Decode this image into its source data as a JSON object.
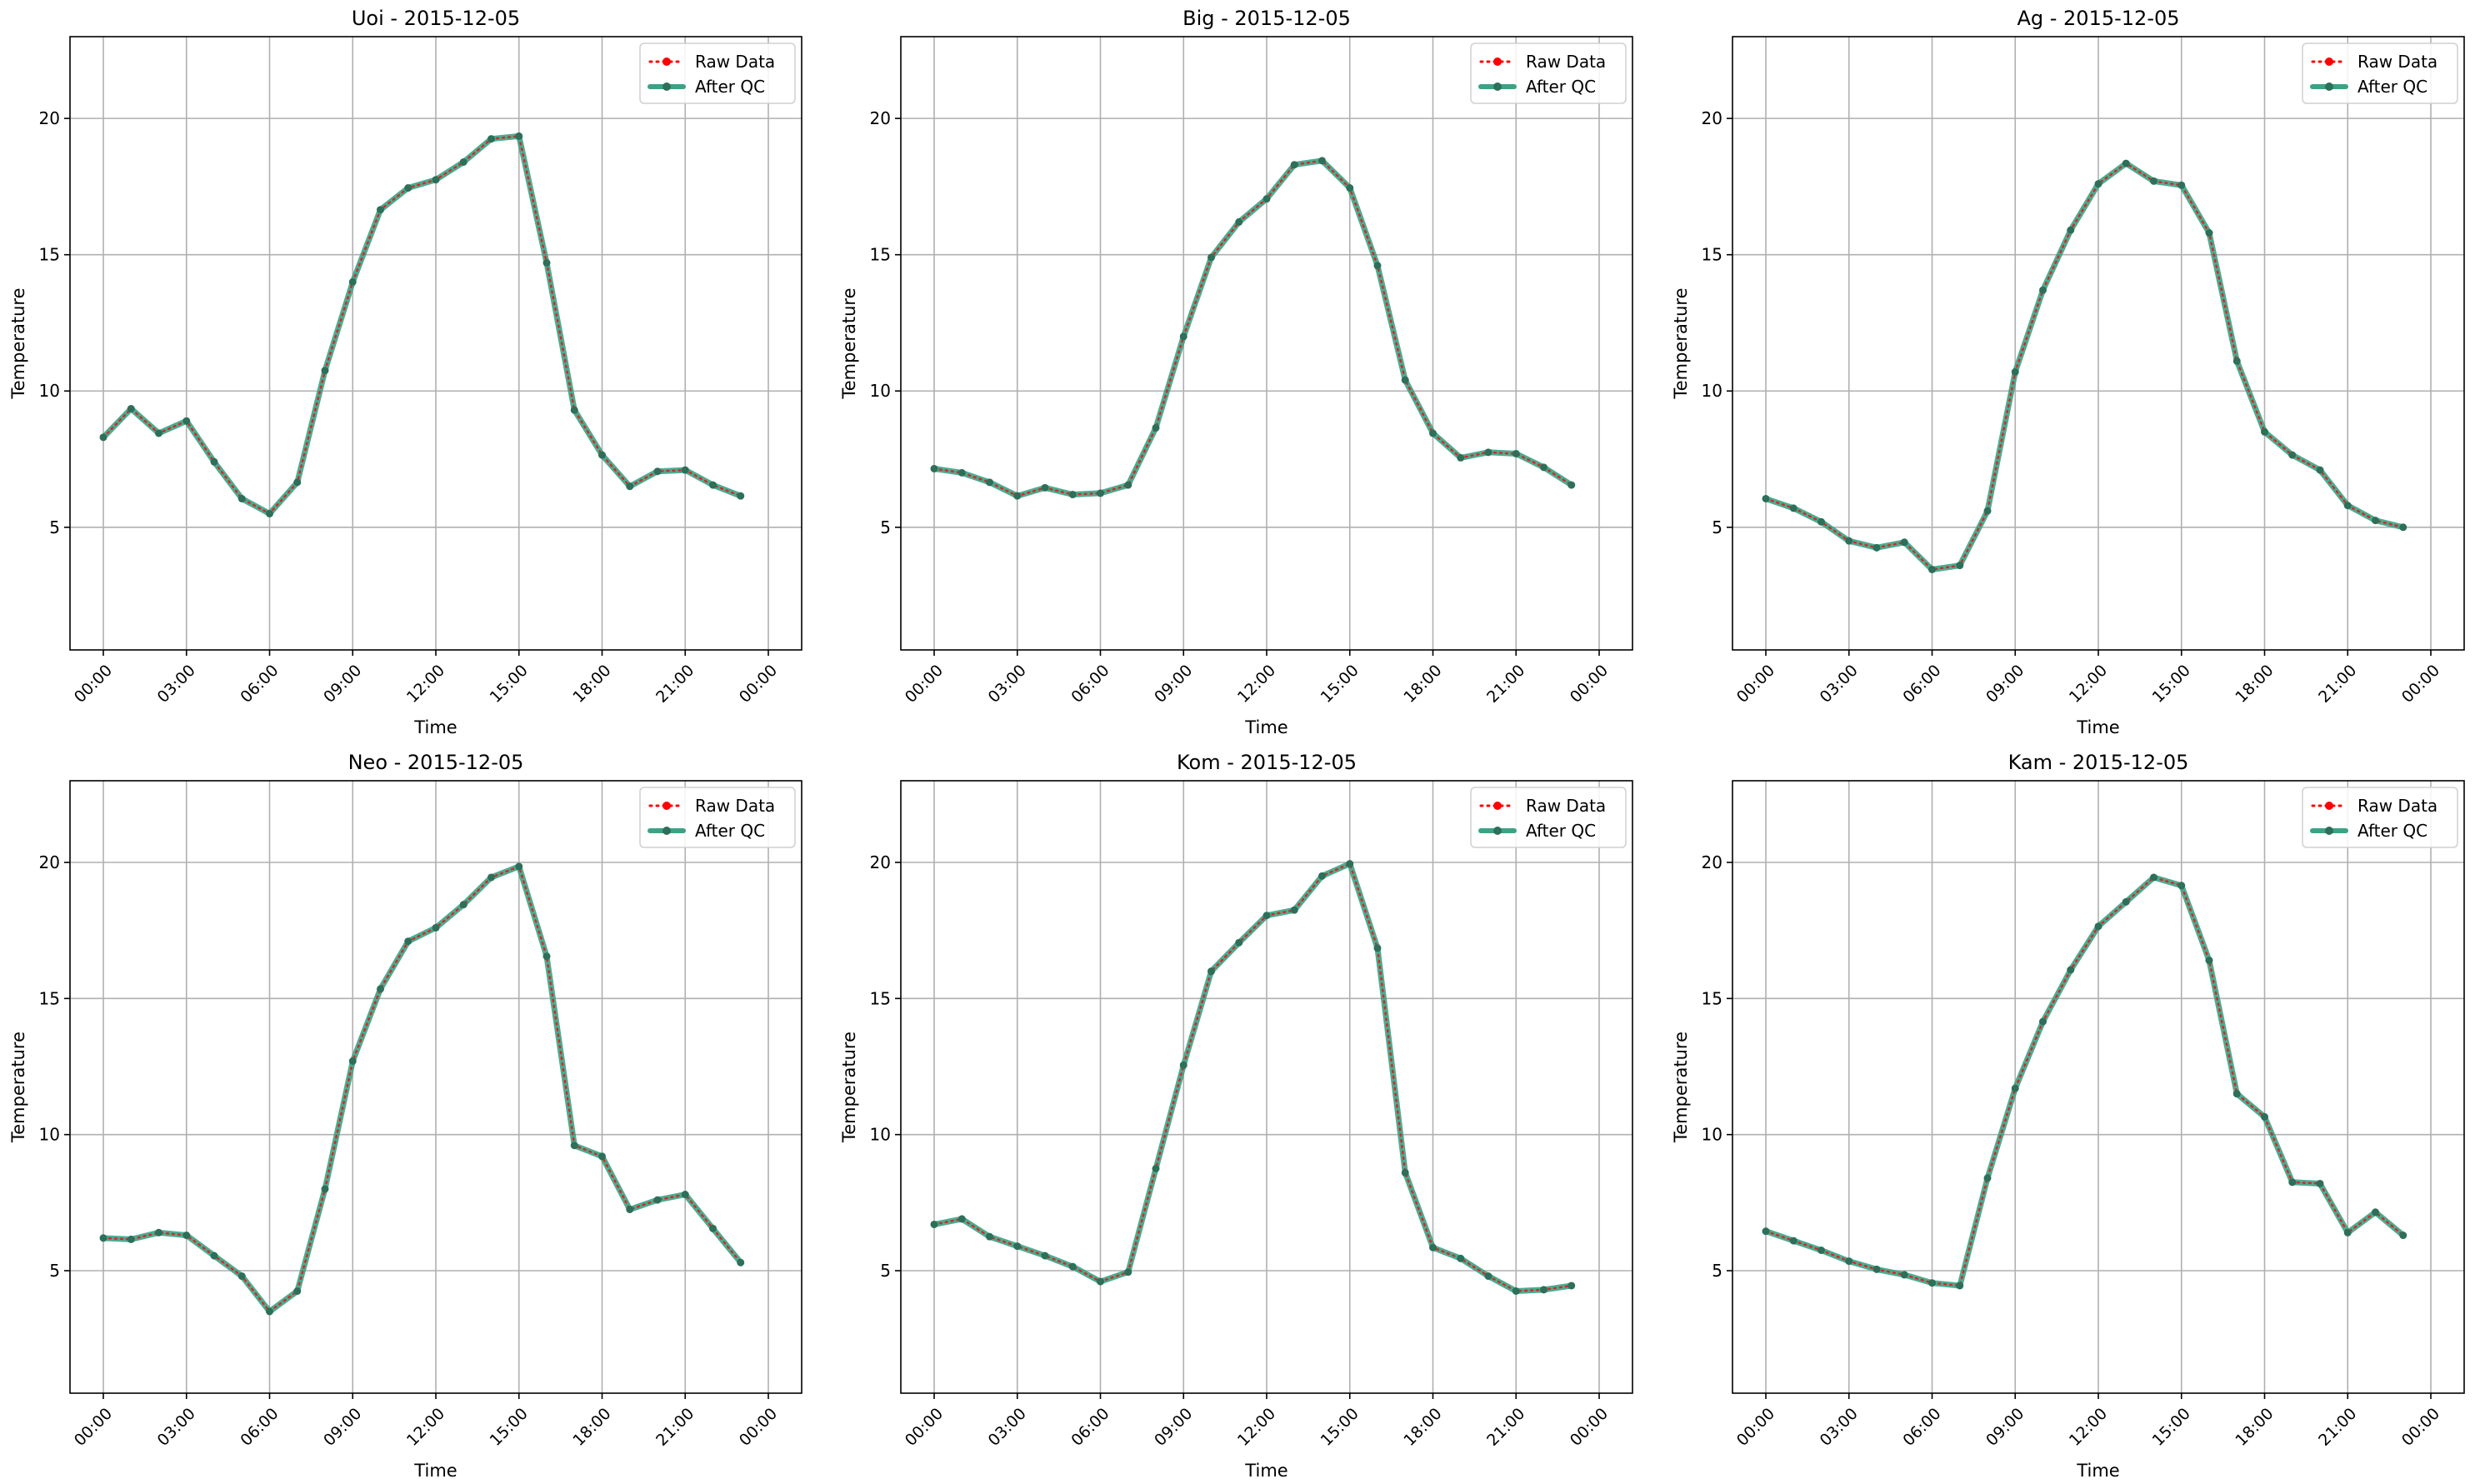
{
  "chart_data": [
    {
      "type": "line",
      "title": "Uoi - 2015-12-05",
      "xlabel": "Time",
      "ylabel": "Temperature",
      "xticks": [
        "00:00",
        "03:00",
        "06:00",
        "09:00",
        "12:00",
        "15:00",
        "18:00",
        "21:00",
        "00:00"
      ],
      "yticks": [
        "5",
        "10",
        "15",
        "20"
      ],
      "ylim": [
        0.5,
        23
      ],
      "grid": true,
      "legend_position": "top-right",
      "series": [
        {
          "name": "Raw Data",
          "values": [
            8.3,
            9.35,
            8.45,
            8.9,
            7.4,
            6.05,
            5.5,
            6.65,
            10.75,
            14.0,
            16.65,
            17.45,
            17.75,
            18.4,
            19.25,
            19.35,
            14.7,
            9.3,
            7.65,
            6.5,
            7.05,
            7.1,
            6.55,
            6.15
          ]
        },
        {
          "name": "After QC",
          "values": [
            8.3,
            9.35,
            8.45,
            8.9,
            7.4,
            6.05,
            5.5,
            6.65,
            10.75,
            14.0,
            16.65,
            17.45,
            17.75,
            18.4,
            19.25,
            19.35,
            14.7,
            9.3,
            7.65,
            6.5,
            7.05,
            7.1,
            6.55,
            6.15
          ]
        }
      ]
    },
    {
      "type": "line",
      "title": "Big - 2015-12-05",
      "xlabel": "Time",
      "ylabel": "Temperature",
      "xticks": [
        "00:00",
        "03:00",
        "06:00",
        "09:00",
        "12:00",
        "15:00",
        "18:00",
        "21:00",
        "00:00"
      ],
      "yticks": [
        "5",
        "10",
        "15",
        "20"
      ],
      "ylim": [
        0.5,
        23
      ],
      "grid": true,
      "legend_position": "top-right",
      "series": [
        {
          "name": "Raw Data",
          "values": [
            7.15,
            7.0,
            6.65,
            6.15,
            6.45,
            6.2,
            6.25,
            6.55,
            8.65,
            12.0,
            14.9,
            16.2,
            17.05,
            18.3,
            18.45,
            17.45,
            14.6,
            10.4,
            8.45,
            7.55,
            7.75,
            7.7,
            7.2,
            6.55
          ]
        },
        {
          "name": "After QC",
          "values": [
            7.15,
            7.0,
            6.65,
            6.15,
            6.45,
            6.2,
            6.25,
            6.55,
            8.65,
            12.0,
            14.9,
            16.2,
            17.05,
            18.3,
            18.45,
            17.45,
            14.6,
            10.4,
            8.45,
            7.55,
            7.75,
            7.7,
            7.2,
            6.55
          ]
        }
      ]
    },
    {
      "type": "line",
      "title": "Ag - 2015-12-05",
      "xlabel": "Time",
      "ylabel": "Temperature",
      "xticks": [
        "00:00",
        "03:00",
        "06:00",
        "09:00",
        "12:00",
        "15:00",
        "18:00",
        "21:00",
        "00:00"
      ],
      "yticks": [
        "5",
        "10",
        "15",
        "20"
      ],
      "ylim": [
        0.5,
        23
      ],
      "grid": true,
      "legend_position": "top-right",
      "series": [
        {
          "name": "Raw Data",
          "values": [
            6.05,
            5.7,
            5.2,
            4.5,
            4.25,
            4.45,
            3.45,
            3.6,
            5.6,
            10.7,
            13.7,
            15.9,
            17.6,
            18.35,
            17.7,
            17.55,
            15.8,
            11.1,
            8.5,
            7.65,
            7.1,
            5.8,
            5.25,
            5.0
          ]
        },
        {
          "name": "After QC",
          "values": [
            6.05,
            5.7,
            5.2,
            4.5,
            4.25,
            4.45,
            3.45,
            3.6,
            5.6,
            10.7,
            13.7,
            15.9,
            17.6,
            18.35,
            17.7,
            17.55,
            15.8,
            11.1,
            8.5,
            7.65,
            7.1,
            5.8,
            5.25,
            5.0
          ]
        }
      ]
    },
    {
      "type": "line",
      "title": "Neo - 2015-12-05",
      "xlabel": "Time",
      "ylabel": "Temperature",
      "xticks": [
        "00:00",
        "03:00",
        "06:00",
        "09:00",
        "12:00",
        "15:00",
        "18:00",
        "21:00",
        "00:00"
      ],
      "yticks": [
        "5",
        "10",
        "15",
        "20"
      ],
      "ylim": [
        0.5,
        23
      ],
      "grid": true,
      "legend_position": "top-right",
      "series": [
        {
          "name": "Raw Data",
          "values": [
            6.2,
            6.15,
            6.4,
            6.3,
            5.55,
            4.8,
            3.5,
            4.25,
            8.0,
            12.7,
            15.35,
            17.1,
            17.6,
            18.45,
            19.45,
            19.85,
            16.55,
            9.6,
            9.2,
            7.25,
            7.6,
            7.8,
            6.55,
            5.3
          ]
        },
        {
          "name": "After QC",
          "values": [
            6.2,
            6.15,
            6.4,
            6.3,
            5.55,
            4.8,
            3.5,
            4.25,
            8.0,
            12.7,
            15.35,
            17.1,
            17.6,
            18.45,
            19.45,
            19.85,
            16.55,
            9.6,
            9.2,
            7.25,
            7.6,
            7.8,
            6.55,
            5.3
          ]
        }
      ]
    },
    {
      "type": "line",
      "title": "Kom - 2015-12-05",
      "xlabel": "Time",
      "ylabel": "Temperature",
      "xticks": [
        "00:00",
        "03:00",
        "06:00",
        "09:00",
        "12:00",
        "15:00",
        "18:00",
        "21:00",
        "00:00"
      ],
      "yticks": [
        "5",
        "10",
        "15",
        "20"
      ],
      "ylim": [
        0.5,
        23
      ],
      "grid": true,
      "legend_position": "top-right",
      "series": [
        {
          "name": "Raw Data",
          "values": [
            6.7,
            6.9,
            6.25,
            5.9,
            5.55,
            5.15,
            4.6,
            4.95,
            8.75,
            12.55,
            16.0,
            17.05,
            18.05,
            18.25,
            19.5,
            19.95,
            16.85,
            8.6,
            5.85,
            5.45,
            4.8,
            4.25,
            4.3,
            4.45
          ]
        },
        {
          "name": "After QC",
          "values": [
            6.7,
            6.9,
            6.25,
            5.9,
            5.55,
            5.15,
            4.6,
            4.95,
            8.75,
            12.55,
            16.0,
            17.05,
            18.05,
            18.25,
            19.5,
            19.95,
            16.85,
            8.6,
            5.85,
            5.45,
            4.8,
            4.25,
            4.3,
            4.45
          ]
        }
      ]
    },
    {
      "type": "line",
      "title": "Kam - 2015-12-05",
      "xlabel": "Time",
      "ylabel": "Temperature",
      "xticks": [
        "00:00",
        "03:00",
        "06:00",
        "09:00",
        "12:00",
        "15:00",
        "18:00",
        "21:00",
        "00:00"
      ],
      "yticks": [
        "5",
        "10",
        "15",
        "20"
      ],
      "ylim": [
        0.5,
        23
      ],
      "grid": true,
      "legend_position": "top-right",
      "series": [
        {
          "name": "Raw Data",
          "values": [
            6.45,
            6.1,
            5.75,
            5.35,
            5.05,
            4.85,
            4.55,
            4.45,
            8.4,
            11.7,
            14.15,
            16.05,
            17.65,
            18.55,
            19.45,
            19.15,
            16.4,
            11.5,
            10.65,
            8.25,
            8.2,
            6.4,
            7.15,
            6.3
          ]
        },
        {
          "name": "After QC",
          "values": [
            6.45,
            6.1,
            5.75,
            5.35,
            5.05,
            4.85,
            4.55,
            4.45,
            8.4,
            11.7,
            14.15,
            16.05,
            17.65,
            18.55,
            19.45,
            19.15,
            16.4,
            11.5,
            10.65,
            8.25,
            8.2,
            6.4,
            7.15,
            6.3
          ]
        }
      ]
    }
  ],
  "style": {
    "raw_color": "#ff0000",
    "qc_color": "#3aa386",
    "qc_marker_color": "#2e6f5a",
    "grid_color": "#b0b0b0",
    "axis_color": "#000000"
  }
}
